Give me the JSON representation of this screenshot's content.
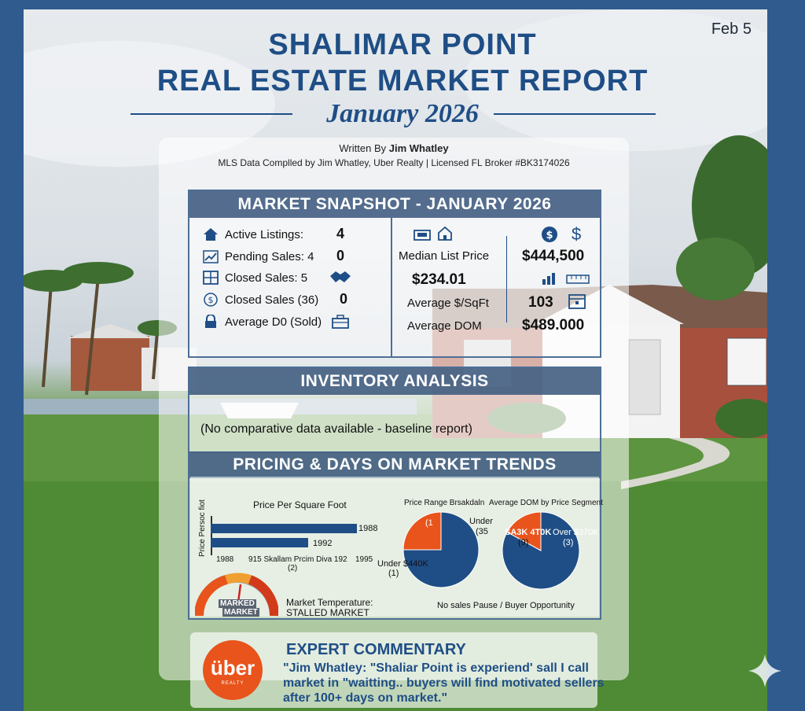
{
  "header": {
    "date": "Feb 5",
    "title_line1": "SHALIMAR POINT",
    "title_line2": "REAL ESTATE MARKET REPORT",
    "subtitle": "January 2026"
  },
  "byline": {
    "written_by_prefix": "Written By ",
    "author": "Jim Whatley",
    "mls_line": "MLS Data Complled by Jim Whatley, Uber Realty | Licensed FL Broker #BK3174026"
  },
  "snapshot": {
    "title": "MARKET SNAPSHOT - JANUARY 2026",
    "left_rows": [
      {
        "label": "Active Listings:",
        "value": "4",
        "icon": "house-icon"
      },
      {
        "label": "Pending Sales: 4",
        "value": "0",
        "icon": "chart-line-icon"
      },
      {
        "label": "Closed Sales: 5",
        "value": "",
        "icon": "grid-icon"
      },
      {
        "label": "Closed Sales (36)",
        "value": "0",
        "icon": "coin-icon"
      },
      {
        "label": "Average D0 (Sold)",
        "value": "",
        "icon": "lock-icon"
      }
    ],
    "right": {
      "median_list_label": "Median List Price",
      "median_list_value": "$444,500",
      "price_left": "$234.01",
      "avg_sqft_label": "Average $/SqFt",
      "avg_sqft_value": "103",
      "avg_dom_label": "Average DOM",
      "avg_dom_value": "$489.000",
      "dollar_glyph": "$",
      "coin_glyph": "$"
    }
  },
  "inventory": {
    "title": "INVENTORY ANALYSIS",
    "text": "(No comparative data available - baseline report)"
  },
  "trends": {
    "title": "PRICING & DAYS ON MARKET TRENDS",
    "bar_title": "Price Per Square Foot",
    "bar_ylabel": "Price Persoc fiot",
    "bar_value_labels": [
      "1988",
      "1992"
    ],
    "bar_xticks": [
      "1988",
      "915 Skallam Prcim Diva 192",
      "1995"
    ],
    "bar_xtick_sub": "(2)",
    "gauge_text_line1": "MARKED",
    "gauge_text_line2": "MARKET",
    "temp_label": "Market Temperature:",
    "temp_value": "STALLED MARKET",
    "pie1_title": "Price Range Brsakdaln",
    "pie1_labels": [
      "(1",
      "Under",
      "(35",
      "Under $440K",
      "(1)"
    ],
    "pie2_title": "Average DOM by Price Segment",
    "pie2_labels": [
      "SA3K 4T0K",
      "(9)",
      "Over $370K",
      "(3)"
    ],
    "footer": "No sales Pause / Buyer Opportunity"
  },
  "chart_data": [
    {
      "type": "bar",
      "title": "Price Per Square Foot",
      "ylabel": "Price Persoc fiot",
      "categories": [
        "1988",
        "1992"
      ],
      "values": [
        1988,
        1992
      ]
    },
    {
      "type": "pie",
      "title": "Price Range Brsakdaln",
      "slices": [
        {
          "label": "(1",
          "value": 25
        },
        {
          "label": "Under $440K",
          "value": 75
        }
      ]
    },
    {
      "type": "pie",
      "title": "Average DOM by Price Segment",
      "slices": [
        {
          "label": "SA3K 4T0K",
          "value": 17
        },
        {
          "label": "Over $370K",
          "value": 83
        }
      ]
    }
  ],
  "commentary": {
    "title": "EXPERT COMMENTARY",
    "line1": "\"Jim Whatley: \"Shaliar Point is experiend' sall I call",
    "line2": "market in \"waitting.. buyers will find motivated sellers",
    "line3": "after 100+ days on market.\"",
    "logo_text": "über",
    "logo_sub": "REALTY"
  },
  "colors": {
    "navy": "#1f4e86",
    "orange": "#e8541c",
    "pie_blue": "#1f4e86"
  }
}
